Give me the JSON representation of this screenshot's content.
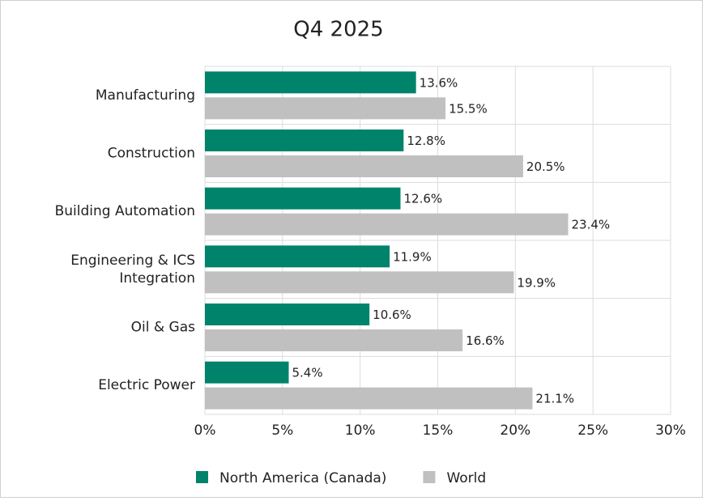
{
  "chart_data": {
    "type": "hbar",
    "title": "Q4 2025",
    "categories": [
      "Manufacturing",
      "Construction",
      "Building Automation",
      "Engineering & ICS Integration",
      "Oil & Gas",
      "Electric Power"
    ],
    "series": [
      {
        "name": "North America (Canada)",
        "color": "#00836b",
        "values": [
          13.6,
          12.8,
          12.6,
          11.9,
          10.6,
          5.4
        ],
        "value_labels": [
          "13.6%",
          "12.8%",
          "12.6%",
          "11.9%",
          "10.6%",
          "5.4%"
        ]
      },
      {
        "name": "World",
        "color": "#c0c0c0",
        "values": [
          15.5,
          20.5,
          23.4,
          19.9,
          16.6,
          21.1
        ],
        "value_labels": [
          "15.5%",
          "20.5%",
          "23.4%",
          "19.9%",
          "16.6%",
          "21.1%"
        ]
      }
    ],
    "xlim": [
      0,
      30
    ],
    "xticks": [
      {
        "value": 0,
        "label": "0%"
      },
      {
        "value": 5,
        "label": "5%"
      },
      {
        "value": 10,
        "label": "10%"
      },
      {
        "value": 15,
        "label": "15%"
      },
      {
        "value": 20,
        "label": "20%"
      },
      {
        "value": 25,
        "label": "25%"
      },
      {
        "value": 30,
        "label": "30%"
      }
    ],
    "grid": true,
    "legend": "bottom"
  }
}
